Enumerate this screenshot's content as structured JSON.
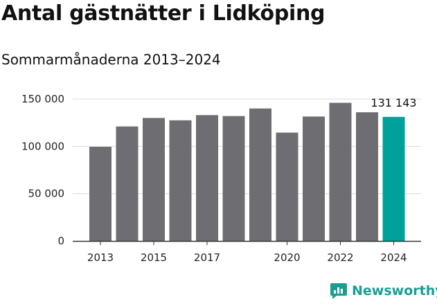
{
  "chart_data": {
    "type": "bar",
    "title": "Antal gästnätter i Lidköping",
    "subtitle": "Sommarmånaderna 2013–2024",
    "categories": [
      "2013",
      "2014",
      "2015",
      "2016",
      "2017",
      "2018",
      "2019",
      "2020",
      "2021",
      "2022",
      "2023",
      "2024"
    ],
    "values": [
      99500,
      121000,
      130000,
      127500,
      133000,
      132000,
      140000,
      114500,
      131500,
      146000,
      136000,
      131143
    ],
    "x_tick_labels": [
      "2013",
      "",
      "2015",
      "",
      "2017",
      "",
      "",
      "2020",
      "",
      "2022",
      "",
      "2024"
    ],
    "y_ticks": [
      0,
      50000,
      100000,
      150000
    ],
    "y_tick_labels": [
      "0",
      "50 000",
      "100 000",
      "150 000"
    ],
    "ylim": [
      0,
      150000
    ],
    "xlabel": "",
    "ylabel": "",
    "grid": true,
    "highlight_index": 11,
    "highlight_label": "131 143",
    "colors": {
      "bar": "#6e6d72",
      "highlight": "#00a19a",
      "grid": "#d9d9d9",
      "axis": "#333333"
    }
  },
  "branding": {
    "name": "Newsworthy",
    "icon": "newsworthy-logo-icon",
    "color": "#1a9e94"
  }
}
